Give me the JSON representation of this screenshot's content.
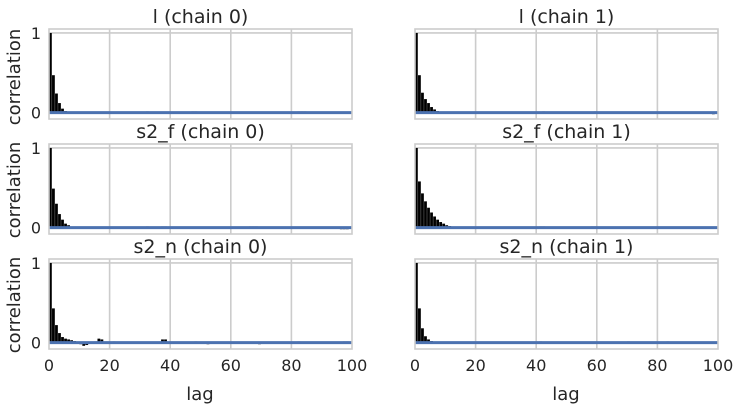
{
  "figure": {
    "ylabel": "correlation",
    "xlabel": "lag",
    "xticks": [
      "0",
      "20",
      "40",
      "60",
      "80",
      "100"
    ],
    "yticks": [
      "0",
      "1"
    ]
  },
  "colors": {
    "background": "#ffffff",
    "grid": "#cccccc",
    "bars": "#000000",
    "baseline": "#4c72b0",
    "text": "#262626"
  },
  "chart_data": [
    {
      "type": "bar",
      "title": "l (chain 0)",
      "xlabel": "",
      "ylabel": "correlation",
      "xlim": [
        0,
        100
      ],
      "ylim": [
        -0.08,
        1.05
      ],
      "grid": true,
      "x": [
        0,
        1,
        2,
        3,
        4,
        5,
        6,
        7,
        8,
        9,
        10,
        11,
        12,
        13,
        14,
        15,
        16,
        17,
        18,
        19,
        20,
        21,
        22,
        23,
        24,
        25,
        26,
        27,
        28,
        29,
        30,
        31,
        32,
        33,
        34,
        35,
        36,
        37,
        38,
        39,
        40,
        41,
        42,
        43,
        44,
        45,
        46,
        47,
        48,
        49,
        50,
        51,
        52,
        53,
        54,
        55,
        56,
        57,
        58,
        59,
        60,
        61,
        62,
        63,
        64,
        65,
        66,
        67,
        68,
        69,
        70,
        71,
        72,
        73,
        74,
        75,
        76,
        77,
        78,
        79,
        80,
        81,
        82,
        83,
        84,
        85,
        86,
        87,
        88,
        89,
        90,
        91,
        92,
        93,
        94,
        95,
        96,
        97,
        98,
        99
      ],
      "values": [
        1.0,
        0.47,
        0.24,
        0.12,
        0.05,
        0.02,
        0.01,
        0.005,
        0.0,
        0.0,
        0.0,
        0.0,
        0.0,
        0.0,
        0.0,
        0.0,
        0.0,
        0.0,
        0.0,
        0.0,
        0.0,
        0.0,
        0.0,
        0.0,
        0.0,
        0.0,
        0.0,
        0.0,
        0.0,
        0.0,
        0.0,
        0.0,
        0.015,
        0.0,
        0.0,
        0.0,
        0.0,
        0.0,
        0.0,
        0.0,
        0.0,
        0.0,
        0.0,
        0.0,
        0.0,
        0.0,
        0.0,
        0.015,
        0.015,
        0.0,
        0.0,
        0.0,
        0.0,
        0.0,
        0.0,
        0.0,
        0.0,
        0.0,
        0.0,
        0.0,
        0.0,
        0.0,
        0.0,
        0.0,
        0.0,
        0.0,
        0.0,
        0.0,
        0.0,
        0.0,
        0.0,
        0.0,
        0.0,
        0.0,
        0.0,
        0.0,
        0.0,
        0.0,
        0.0,
        0.0,
        0.0,
        0.0,
        0.015,
        0.015,
        0.015,
        0.0,
        0.0,
        0.0,
        0.0,
        0.0,
        0.0,
        0.0,
        0.0,
        0.0,
        0.0,
        0.0,
        0.0,
        0.0,
        0.0,
        0.0
      ]
    },
    {
      "type": "bar",
      "title": "l (chain 1)",
      "xlabel": "",
      "ylabel": "",
      "xlim": [
        0,
        100
      ],
      "ylim": [
        -0.08,
        1.05
      ],
      "grid": true,
      "x": [
        0,
        1,
        2,
        3,
        4,
        5,
        6,
        7,
        8,
        9,
        10,
        11,
        12,
        13,
        14,
        15,
        16,
        17,
        18,
        19,
        20,
        21,
        22,
        23,
        24,
        25,
        26,
        27,
        28,
        29,
        30,
        31,
        32,
        33,
        34,
        35,
        36,
        37,
        38,
        39,
        40,
        41,
        42,
        43,
        44,
        45,
        46,
        47,
        48,
        49,
        50,
        51,
        52,
        53,
        54,
        55,
        56,
        57,
        58,
        59,
        60,
        61,
        62,
        63,
        64,
        65,
        66,
        67,
        68,
        69,
        70,
        71,
        72,
        73,
        74,
        75,
        76,
        77,
        78,
        79,
        80,
        81,
        82,
        83,
        84,
        85,
        86,
        87,
        88,
        89,
        90,
        91,
        92,
        93,
        94,
        95,
        96,
        97,
        98,
        99
      ],
      "values": [
        1.0,
        0.47,
        0.25,
        0.17,
        0.12,
        0.07,
        0.04,
        0.02,
        0.01,
        0.0,
        0.0,
        0.0,
        0.0,
        0.0,
        0.0,
        0.0,
        0.0,
        0.0,
        0.0,
        0.0,
        0.0,
        0.0,
        0.0,
        0.0,
        0.0,
        0.0,
        0.0,
        0.0,
        0.0,
        0.0,
        0.0,
        0.0,
        0.0,
        0.0,
        0.0,
        0.0,
        0.0,
        0.0,
        0.0,
        0.0,
        0.0,
        0.0,
        0.015,
        0.0,
        0.0,
        0.0,
        0.0,
        0.0,
        0.0,
        0.0,
        0.0,
        0.0,
        0.0,
        0.0,
        0.0,
        0.0,
        0.0,
        0.0,
        0.0,
        0.015,
        0.0,
        0.0,
        0.0,
        0.0,
        0.0,
        0.0,
        0.0,
        0.0,
        0.0,
        0.0,
        0.0,
        0.0,
        0.0,
        0.0,
        0.0,
        0.0,
        0.0,
        0.0,
        0.0,
        0.0,
        0.0,
        0.0,
        0.0,
        0.0,
        0.0,
        0.0,
        0.0,
        0.0,
        0.0,
        0.0,
        0.0,
        0.0,
        0.0,
        0.0,
        0.0,
        0.0,
        0.0,
        0.0,
        -0.02,
        0.0
      ]
    },
    {
      "type": "bar",
      "title": "s2_f (chain 0)",
      "xlabel": "",
      "ylabel": "correlation",
      "xlim": [
        0,
        100
      ],
      "ylim": [
        -0.08,
        1.05
      ],
      "grid": true,
      "x": [
        0,
        1,
        2,
        3,
        4,
        5,
        6,
        7,
        8,
        9,
        10,
        11,
        12,
        13,
        14,
        15,
        16,
        17,
        18,
        19,
        20,
        21,
        22,
        23,
        24,
        25,
        26,
        27,
        28,
        29,
        30,
        31,
        32,
        33,
        34,
        35,
        36,
        37,
        38,
        39,
        40,
        41,
        42,
        43,
        44,
        45,
        46,
        47,
        48,
        49,
        50,
        51,
        52,
        53,
        54,
        55,
        56,
        57,
        58,
        59,
        60,
        61,
        62,
        63,
        64,
        65,
        66,
        67,
        68,
        69,
        70,
        71,
        72,
        73,
        74,
        75,
        76,
        77,
        78,
        79,
        80,
        81,
        82,
        83,
        84,
        85,
        86,
        87,
        88,
        89,
        90,
        91,
        92,
        93,
        94,
        95,
        96,
        97,
        98,
        99
      ],
      "values": [
        1.0,
        0.49,
        0.3,
        0.17,
        0.1,
        0.05,
        0.03,
        0.01,
        0.0,
        0.0,
        0.0,
        0.0,
        0.0,
        0.0,
        0.0,
        0.0,
        0.0,
        0.0,
        0.0,
        0.0,
        0.0,
        0.0,
        0.0,
        0.0,
        0.0,
        0.0,
        0.0,
        0.0,
        0.0,
        0.0,
        0.0,
        0.0,
        0.015,
        0.0,
        0.0,
        0.0,
        0.0,
        0.015,
        0.015,
        0.0,
        0.0,
        0.0,
        0.0,
        0.0,
        0.0,
        0.0,
        0.0,
        0.0,
        0.0,
        0.0,
        0.0,
        0.0,
        0.0,
        0.0,
        0.0,
        0.0,
        0.0,
        0.0,
        0.0,
        0.0,
        0.0,
        0.0,
        0.0,
        0.0,
        0.0,
        0.0,
        0.015,
        0.015,
        0.015,
        0.0,
        0.0,
        0.0,
        0.0,
        0.0,
        0.0,
        0.0,
        0.0,
        0.0,
        0.0,
        0.0,
        0.0,
        0.0,
        0.0,
        0.0,
        0.0,
        0.0,
        0.0,
        0.0,
        0.0,
        0.0,
        0.0,
        0.0,
        0.0,
        0.0,
        0.0,
        0.0,
        -0.02,
        -0.02,
        -0.02,
        0.0
      ]
    },
    {
      "type": "bar",
      "title": "s2_f (chain 1)",
      "xlabel": "",
      "ylabel": "",
      "xlim": [
        0,
        100
      ],
      "ylim": [
        -0.08,
        1.05
      ],
      "grid": true,
      "x": [
        0,
        1,
        2,
        3,
        4,
        5,
        6,
        7,
        8,
        9,
        10,
        11,
        12,
        13,
        14,
        15,
        16,
        17,
        18,
        19,
        20,
        21,
        22,
        23,
        24,
        25,
        26,
        27,
        28,
        29,
        30,
        31,
        32,
        33,
        34,
        35,
        36,
        37,
        38,
        39,
        40,
        41,
        42,
        43,
        44,
        45,
        46,
        47,
        48,
        49,
        50,
        51,
        52,
        53,
        54,
        55,
        56,
        57,
        58,
        59,
        60,
        61,
        62,
        63,
        64,
        65,
        66,
        67,
        68,
        69,
        70,
        71,
        72,
        73,
        74,
        75,
        76,
        77,
        78,
        79,
        80,
        81,
        82,
        83,
        84,
        85,
        86,
        87,
        88,
        89,
        90,
        91,
        92,
        93,
        94,
        95,
        96,
        97,
        98,
        99
      ],
      "values": [
        1.0,
        0.58,
        0.43,
        0.33,
        0.25,
        0.19,
        0.14,
        0.1,
        0.07,
        0.05,
        0.03,
        0.02,
        0.01,
        0.0,
        0.0,
        0.0,
        0.0,
        0.0,
        0.0,
        0.0,
        0.0,
        0.0,
        0.0,
        0.0,
        0.0,
        0.0,
        0.0,
        0.0,
        0.0,
        0.0,
        0.0,
        0.0,
        0.0,
        0.0,
        0.0,
        0.0,
        0.0,
        0.0,
        0.0,
        0.0,
        0.0,
        0.015,
        0.015,
        0.0,
        0.0,
        0.0,
        0.0,
        0.0,
        0.0,
        0.0,
        0.0,
        0.0,
        0.0,
        0.0,
        0.0,
        0.0,
        0.0,
        0.0,
        0.015,
        0.015,
        0.0,
        0.0,
        0.0,
        0.0,
        0.0,
        0.0,
        0.0,
        0.0,
        0.0,
        0.0,
        0.0,
        0.0,
        0.0,
        0.0,
        0.0,
        0.0,
        0.0,
        0.0,
        0.0,
        0.0,
        0.0,
        0.0,
        0.0,
        0.0,
        0.0,
        0.0,
        0.0,
        0.0,
        0.0,
        0.0,
        0.0,
        0.0,
        0.0,
        0.0,
        0.0,
        0.0,
        0.0,
        0.0,
        0.0,
        0.0
      ]
    },
    {
      "type": "bar",
      "title": "s2_n (chain 0)",
      "xlabel": "lag",
      "ylabel": "correlation",
      "xlim": [
        0,
        100
      ],
      "ylim": [
        -0.08,
        1.05
      ],
      "grid": true,
      "x": [
        0,
        1,
        2,
        3,
        4,
        5,
        6,
        7,
        8,
        9,
        10,
        11,
        12,
        13,
        14,
        15,
        16,
        17,
        18,
        19,
        20,
        21,
        22,
        23,
        24,
        25,
        26,
        27,
        28,
        29,
        30,
        31,
        32,
        33,
        34,
        35,
        36,
        37,
        38,
        39,
        40,
        41,
        42,
        43,
        44,
        45,
        46,
        47,
        48,
        49,
        50,
        51,
        52,
        53,
        54,
        55,
        56,
        57,
        58,
        59,
        60,
        61,
        62,
        63,
        64,
        65,
        66,
        67,
        68,
        69,
        70,
        71,
        72,
        73,
        74,
        75,
        76,
        77,
        78,
        79,
        80,
        81,
        82,
        83,
        84,
        85,
        86,
        87,
        88,
        89,
        90,
        91,
        92,
        93,
        94,
        95,
        96,
        97,
        98,
        99
      ],
      "values": [
        1.0,
        0.43,
        0.22,
        0.12,
        0.07,
        0.05,
        0.04,
        0.03,
        0.02,
        0.01,
        -0.02,
        -0.04,
        -0.03,
        0.0,
        0.0,
        0.015,
        0.05,
        0.04,
        0.0,
        0.0,
        0.0,
        0.015,
        0.0,
        0.0,
        0.0,
        0.0,
        0.0,
        0.0,
        0.0,
        0.0,
        0.0,
        0.0,
        0.0,
        0.0,
        0.0,
        0.0,
        0.0,
        0.04,
        0.04,
        0.0,
        0.0,
        0.0,
        0.0,
        0.0,
        0.0,
        0.0,
        0.0,
        0.0,
        0.015,
        0.0,
        0.0,
        0.0,
        -0.02,
        0.0,
        0.0,
        0.0,
        0.0,
        0.0,
        0.0,
        0.0,
        0.0,
        0.0,
        0.0,
        0.0,
        0.0,
        0.0,
        0.0,
        0.0,
        0.0,
        -0.02,
        0.0,
        0.0,
        0.0,
        0.0,
        0.0,
        0.0,
        0.0,
        0.0,
        0.0,
        0.0,
        0.0,
        0.0,
        0.015,
        0.0,
        0.0,
        0.0,
        0.0,
        0.0,
        0.0,
        0.0,
        0.0,
        0.0,
        0.0,
        0.0,
        0.0,
        0.0,
        0.0,
        0.015,
        0.015,
        0.0
      ]
    },
    {
      "type": "bar",
      "title": "s2_n (chain 1)",
      "xlabel": "lag",
      "ylabel": "",
      "xlim": [
        0,
        100
      ],
      "ylim": [
        -0.08,
        1.05
      ],
      "grid": true,
      "x": [
        0,
        1,
        2,
        3,
        4,
        5,
        6,
        7,
        8,
        9,
        10,
        11,
        12,
        13,
        14,
        15,
        16,
        17,
        18,
        19,
        20,
        21,
        22,
        23,
        24,
        25,
        26,
        27,
        28,
        29,
        30,
        31,
        32,
        33,
        34,
        35,
        36,
        37,
        38,
        39,
        40,
        41,
        42,
        43,
        44,
        45,
        46,
        47,
        48,
        49,
        50,
        51,
        52,
        53,
        54,
        55,
        56,
        57,
        58,
        59,
        60,
        61,
        62,
        63,
        64,
        65,
        66,
        67,
        68,
        69,
        70,
        71,
        72,
        73,
        74,
        75,
        76,
        77,
        78,
        79,
        80,
        81,
        82,
        83,
        84,
        85,
        86,
        87,
        88,
        89,
        90,
        91,
        92,
        93,
        94,
        95,
        96,
        97,
        98,
        99
      ],
      "values": [
        1.0,
        0.43,
        0.18,
        0.08,
        0.04,
        0.02,
        0.01,
        0.0,
        0.0,
        0.0,
        0.0,
        0.0,
        0.0,
        0.0,
        0.0,
        0.0,
        0.0,
        0.0,
        0.0,
        0.0,
        0.0,
        0.0,
        0.0,
        0.0,
        0.0,
        0.0,
        0.0,
        0.0,
        0.0,
        0.0,
        0.0,
        0.0,
        0.0,
        0.0,
        0.0,
        0.0,
        0.0,
        0.0,
        0.0,
        0.0,
        0.0,
        0.015,
        0.0,
        0.0,
        0.0,
        0.0,
        0.0,
        0.0,
        0.0,
        0.0,
        0.0,
        0.0,
        0.0,
        0.0,
        0.0,
        0.0,
        0.0,
        0.0,
        0.0,
        0.0,
        0.0,
        0.0,
        0.0,
        0.0,
        0.0,
        0.0,
        0.0,
        0.0,
        0.0,
        0.0,
        0.015,
        0.0,
        0.0,
        0.0,
        0.0,
        0.0,
        0.0,
        0.0,
        0.0,
        0.0,
        0.0,
        0.0,
        0.0,
        0.015,
        0.0,
        0.0,
        0.0,
        0.0,
        0.0,
        0.0,
        0.0,
        0.0,
        0.0,
        0.0,
        0.0,
        0.0,
        0.0,
        0.0,
        0.0,
        0.0
      ]
    }
  ]
}
